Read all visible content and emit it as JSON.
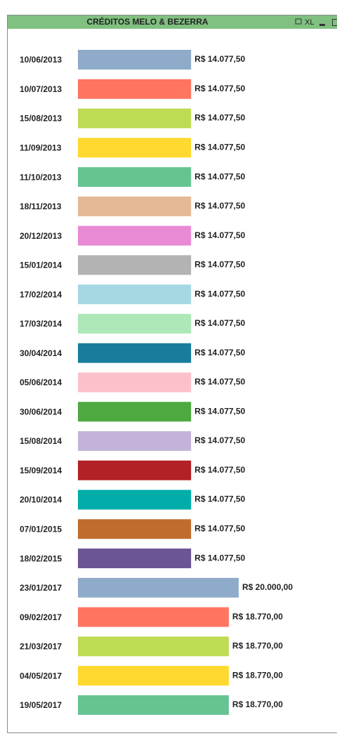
{
  "window": {
    "title": "CRÉDITOS MELO & BEZERRA",
    "xl": "XL"
  },
  "chart_data": {
    "type": "bar",
    "categories": [
      "10/06/2013",
      "10/07/2013",
      "15/08/2013",
      "11/09/2013",
      "11/10/2013",
      "18/11/2013",
      "20/12/2013",
      "15/01/2014",
      "17/02/2014",
      "17/03/2014",
      "30/04/2014",
      "05/06/2014",
      "30/06/2014",
      "15/08/2014",
      "15/09/2014",
      "20/10/2014",
      "07/01/2015",
      "18/02/2015",
      "23/01/2017",
      "09/02/2017",
      "21/03/2017",
      "04/05/2017",
      "19/05/2017"
    ],
    "values": [
      14077.5,
      14077.5,
      14077.5,
      14077.5,
      14077.5,
      14077.5,
      14077.5,
      14077.5,
      14077.5,
      14077.5,
      14077.5,
      14077.5,
      14077.5,
      14077.5,
      14077.5,
      14077.5,
      14077.5,
      14077.5,
      20000,
      18770,
      18770,
      18770,
      18770
    ],
    "value_labels": [
      "R$ 14.077,50",
      "R$ 14.077,50",
      "R$ 14.077,50",
      "R$ 14.077,50",
      "R$ 14.077,50",
      "R$ 14.077,50",
      "R$ 14.077,50",
      "R$ 14.077,50",
      "R$ 14.077,50",
      "R$ 14.077,50",
      "R$ 14.077,50",
      "R$ 14.077,50",
      "R$ 14.077,50",
      "R$ 14.077,50",
      "R$ 14.077,50",
      "R$ 14.077,50",
      "R$ 14.077,50",
      "R$ 14.077,50",
      "R$ 20.000,00",
      "R$ 18.770,00",
      "R$ 18.770,00",
      "R$ 18.770,00",
      "R$ 18.770,00"
    ],
    "colors": [
      "#8eabc9",
      "#ff7560",
      "#bedb54",
      "#ffd92f",
      "#66c492",
      "#e5b896",
      "#e88ad4",
      "#b3b3b3",
      "#a6d8e3",
      "#aee8b8",
      "#1a7c9c",
      "#fcc0cb",
      "#4ea941",
      "#c4b3d8",
      "#b22126",
      "#00ada8",
      "#bf6c2e",
      "#6b5595",
      "#8eabc9",
      "#ff7560",
      "#bedb54",
      "#ffd92f",
      "#66c492"
    ]
  }
}
